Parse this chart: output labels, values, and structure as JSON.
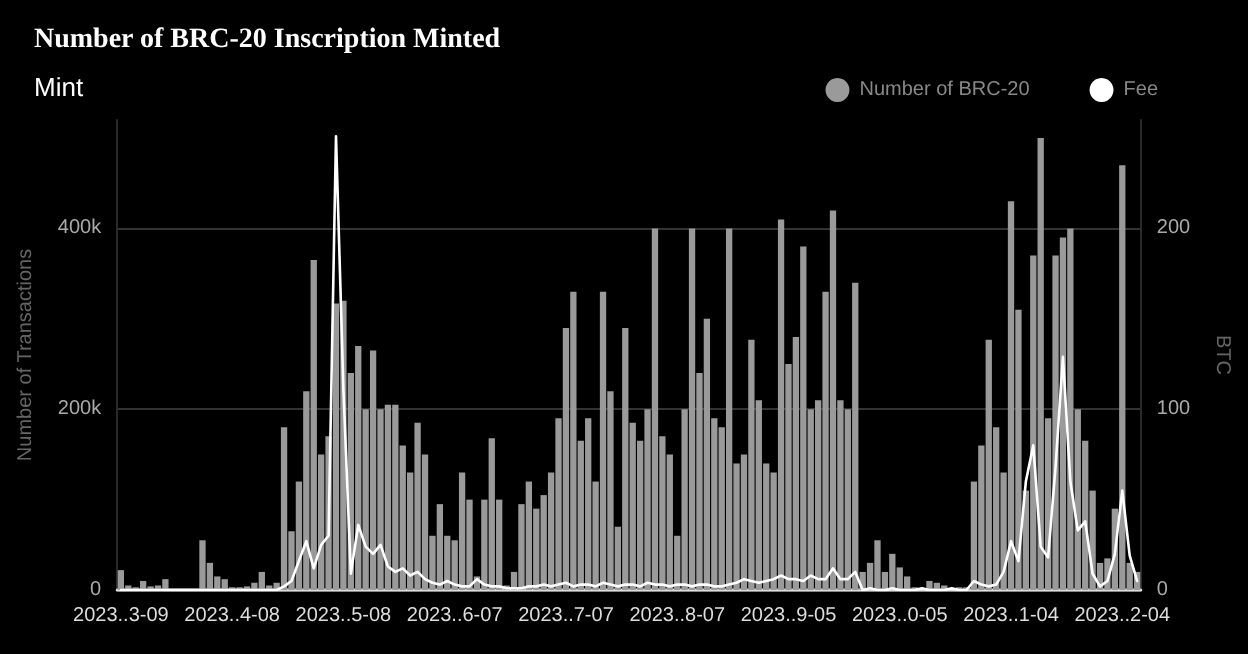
{
  "chart_data": {
    "type": "bar",
    "title": "Number of BRC-20 Inscription Minted",
    "subtitle": "Mint",
    "ylabel": "Number of Transactions",
    "y2label": "BTC",
    "categories": [
      "2023..3-09",
      null,
      null,
      null,
      null,
      null,
      null,
      null,
      null,
      null,
      null,
      null,
      null,
      null,
      null,
      "2023..4-08",
      null,
      null,
      null,
      null,
      null,
      null,
      null,
      null,
      null,
      null,
      null,
      null,
      null,
      null,
      "2023..5-08",
      null,
      null,
      null,
      null,
      null,
      null,
      null,
      null,
      null,
      null,
      null,
      null,
      null,
      null,
      "2023..6-07",
      null,
      null,
      null,
      null,
      null,
      null,
      null,
      null,
      null,
      null,
      null,
      null,
      null,
      null,
      "2023..7-07",
      null,
      null,
      null,
      null,
      null,
      null,
      null,
      null,
      null,
      null,
      null,
      null,
      null,
      null,
      "2023..8-07",
      null,
      null,
      null,
      null,
      null,
      null,
      null,
      null,
      null,
      null,
      null,
      null,
      null,
      null,
      "2023..9-05",
      null,
      null,
      null,
      null,
      null,
      null,
      null,
      null,
      null,
      null,
      null,
      null,
      null,
      null,
      "2023..0-05",
      null,
      null,
      null,
      null,
      null,
      null,
      null,
      null,
      null,
      null,
      null,
      null,
      null,
      null,
      "2023..1-04",
      null,
      null,
      null,
      null,
      null,
      null,
      null,
      null,
      null,
      null,
      null,
      null,
      null,
      null,
      "2023..2-04",
      null,
      null
    ],
    "series": [
      {
        "name": "Number of BRC-20",
        "color": "#9a9a9a",
        "values": [
          22000,
          5000,
          3000,
          10000,
          4000,
          5000,
          12000,
          null,
          1000,
          1000,
          1000,
          55000,
          30000,
          15000,
          12000,
          3000,
          3000,
          4000,
          8000,
          20000,
          5000,
          8000,
          180000,
          65000,
          120000,
          220000,
          365000,
          150000,
          170000,
          317000,
          320000,
          240000,
          270000,
          200000,
          265000,
          200000,
          205000,
          205000,
          160000,
          130000,
          185000,
          150000,
          60000,
          95000,
          60000,
          55000,
          130000,
          100000,
          15000,
          100000,
          168000,
          100000,
          5000,
          20000,
          95000,
          120000,
          90000,
          105000,
          130000,
          190000,
          290000,
          330000,
          165000,
          190000,
          120000,
          330000,
          220000,
          70000,
          290000,
          185000,
          165000,
          200000,
          400000,
          170000,
          150000,
          60000,
          200000,
          400000,
          240000,
          300000,
          190000,
          180000,
          400000,
          140000,
          150000,
          277000,
          210000,
          140000,
          130000,
          410000,
          250000,
          280000,
          380000,
          200000,
          210000,
          330000,
          420000,
          210000,
          200000,
          340000,
          20000,
          30000,
          55000,
          20000,
          40000,
          25000,
          15000,
          3000,
          null,
          10000,
          8000,
          5000,
          null,
          3000,
          3000,
          120000,
          160000,
          277000,
          180000,
          130000,
          430000,
          310000,
          110000,
          370000,
          500000,
          190000,
          370000,
          390000,
          400000,
          200000,
          165000,
          110000,
          30000,
          35000,
          90000,
          470000,
          30000,
          20000
        ]
      },
      {
        "name": "Fee",
        "type": "line",
        "axis": "y2",
        "color": "#ffffff",
        "values": [
          0,
          0,
          0,
          0,
          0,
          0,
          0,
          0,
          0,
          0,
          0,
          0,
          0,
          0,
          0,
          0,
          0,
          0,
          0,
          0,
          0,
          0,
          2,
          5,
          16,
          27,
          12,
          25,
          30,
          251,
          111,
          9,
          36,
          24,
          20,
          25,
          13,
          10,
          12,
          8,
          10,
          6,
          4,
          3,
          5,
          3,
          2,
          2,
          6,
          3,
          2,
          2,
          1,
          1,
          1,
          2,
          2,
          3,
          2,
          3,
          4,
          2,
          3,
          3,
          2,
          4,
          3,
          2,
          3,
          3,
          2,
          4,
          3,
          3,
          2,
          3,
          3,
          2,
          3,
          3,
          2,
          2,
          3,
          4,
          6,
          5,
          4,
          5,
          6,
          8,
          6,
          6,
          5,
          8,
          6,
          6,
          12,
          6,
          6,
          10,
          0,
          1,
          0,
          0,
          1,
          0,
          0,
          0,
          1,
          0,
          0,
          0,
          1,
          0,
          0,
          5,
          3,
          2,
          3,
          10,
          27,
          16,
          60,
          80,
          24,
          18,
          68,
          129,
          60,
          33,
          38,
          9,
          2,
          5,
          20,
          55,
          19,
          5
        ]
      }
    ],
    "ylim": [
      0,
      520000
    ],
    "yticks": [
      0,
      {
        "value": 200000,
        "label": "200k"
      },
      {
        "value": 400000,
        "label": "400k"
      }
    ],
    "y2lim": [
      0,
      260
    ],
    "y2ticks": [
      0,
      100,
      200
    ],
    "grid": "y",
    "legend": "top right",
    "marker": "none",
    "line_style": "solid"
  }
}
